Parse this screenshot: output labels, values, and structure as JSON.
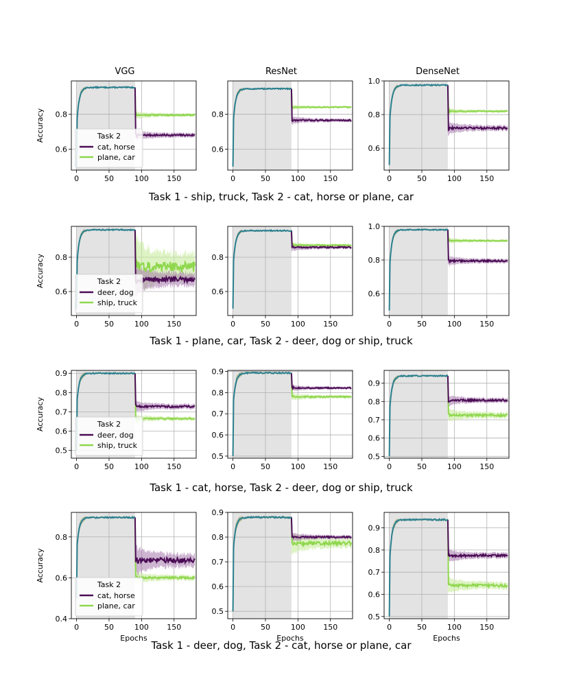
{
  "colors": {
    "task1": "#2a7f8e",
    "task1_band": "#7a8a3a",
    "task2_a": "#4b0c55",
    "task2_a_band": "#9b6aa3",
    "task2_b": "#8fd74e",
    "task2_b_band": "#c8eb9c",
    "shade": "#e3e3e3",
    "grid": "#b0b0b0"
  },
  "col_titles": [
    "VGG",
    "ResNet",
    "DenseNet"
  ],
  "row_captions": [
    "Task 1 - ship, truck, Task 2 - cat, horse or plane, car",
    "Task 1 - plane, car, Task 2 - deer, dog or ship, truck",
    "Task 1 - cat, horse, Task 2 - deer, dog or ship, truck",
    "Task 1 - deer, dog, Task 2 - cat, horse or plane, car"
  ],
  "ylabel": "Accuracy",
  "xlabel": "Epochs",
  "chart_data": [
    {
      "type": "line",
      "row": 0,
      "col": 0,
      "xlim": [
        -8,
        184
      ],
      "xticks": [
        0,
        50,
        100,
        150
      ],
      "ylim": [
        0.48,
        0.99
      ],
      "yticks": [
        0.6,
        0.8
      ],
      "shade_x": [
        0,
        90
      ],
      "task1_peak": 0.953,
      "task2_a_final": 0.68,
      "task2_a_band": 0.02,
      "task2_b_final": 0.795,
      "task2_b_band": 0.015,
      "legend": {
        "title": "Task 2",
        "entries": [
          "cat, horse",
          "plane, car"
        ]
      }
    },
    {
      "type": "line",
      "row": 0,
      "col": 1,
      "xlim": [
        -8,
        184
      ],
      "xticks": [
        0,
        50,
        100,
        150
      ],
      "ylim": [
        0.48,
        0.99
      ],
      "yticks": [
        0.6,
        0.8
      ],
      "shade_x": [
        0,
        90
      ],
      "task1_peak": 0.945,
      "task2_a_final": 0.765,
      "task2_a_band": 0.015,
      "task2_b_final": 0.84,
      "task2_b_band": 0.01
    },
    {
      "type": "line",
      "row": 0,
      "col": 2,
      "xlim": [
        -8,
        184
      ],
      "xticks": [
        0,
        50,
        100,
        150
      ],
      "ylim": [
        0.47,
        1.0
      ],
      "yticks": [
        0.6,
        0.8,
        1.0
      ],
      "shade_x": [
        0,
        90
      ],
      "task1_peak": 0.975,
      "task2_a_final": 0.72,
      "task2_a_band": 0.025,
      "task2_b_final": 0.82,
      "task2_b_band": 0.012
    },
    {
      "type": "line",
      "row": 1,
      "col": 0,
      "xlim": [
        -8,
        184
      ],
      "xticks": [
        0,
        50,
        100,
        150
      ],
      "ylim": [
        0.46,
        0.98
      ],
      "yticks": [
        0.6,
        0.8
      ],
      "shade_x": [
        0,
        90
      ],
      "task1_peak": 0.96,
      "task2_a_final": 0.67,
      "task2_a_band": 0.06,
      "task2_b_final": 0.745,
      "task2_b_band": 0.12,
      "legend": {
        "title": "Task 2",
        "entries": [
          "deer, dog",
          "ship, truck"
        ]
      }
    },
    {
      "type": "line",
      "row": 1,
      "col": 1,
      "xlim": [
        -8,
        184
      ],
      "xticks": [
        0,
        50,
        100,
        150
      ],
      "ylim": [
        0.46,
        0.98
      ],
      "yticks": [
        0.6,
        0.8
      ],
      "shade_x": [
        0,
        90
      ],
      "task1_peak": 0.955,
      "task2_a_final": 0.858,
      "task2_a_band": 0.015,
      "task2_b_final": 0.87,
      "task2_b_band": 0.012
    },
    {
      "type": "line",
      "row": 1,
      "col": 2,
      "xlim": [
        -8,
        184
      ],
      "xticks": [
        0,
        50,
        100,
        150
      ],
      "ylim": [
        0.47,
        1.0
      ],
      "yticks": [
        0.6,
        0.8,
        1.0
      ],
      "shade_x": [
        0,
        90
      ],
      "task1_peak": 0.98,
      "task2_a_final": 0.795,
      "task2_a_band": 0.02,
      "task2_b_final": 0.915,
      "task2_b_band": 0.012
    },
    {
      "type": "line",
      "row": 2,
      "col": 0,
      "xlim": [
        -8,
        184
      ],
      "xticks": [
        0,
        50,
        100,
        150
      ],
      "ylim": [
        0.46,
        0.915
      ],
      "yticks": [
        0.5,
        0.6,
        0.7,
        0.8,
        0.9
      ],
      "shade_x": [
        0,
        90
      ],
      "task1_peak": 0.9,
      "task2_a_final": 0.728,
      "task2_a_band": 0.02,
      "task2_b_final": 0.665,
      "task2_b_band": 0.015,
      "legend": {
        "title": "Task 2",
        "entries": [
          "deer, dog",
          "ship, truck"
        ]
      }
    },
    {
      "type": "line",
      "row": 2,
      "col": 1,
      "xlim": [
        -8,
        184
      ],
      "xticks": [
        0,
        50,
        100,
        150
      ],
      "ylim": [
        0.49,
        0.905
      ],
      "yticks": [
        0.5,
        0.6,
        0.7,
        0.8,
        0.9
      ],
      "shade_x": [
        0,
        90
      ],
      "task1_peak": 0.893,
      "task2_a_final": 0.822,
      "task2_a_band": 0.01,
      "task2_b_final": 0.78,
      "task2_b_band": 0.012
    },
    {
      "type": "line",
      "row": 2,
      "col": 2,
      "xlim": [
        -8,
        184
      ],
      "xticks": [
        0,
        50,
        100,
        150
      ],
      "ylim": [
        0.49,
        0.97
      ],
      "yticks": [
        0.5,
        0.6,
        0.7,
        0.8,
        0.9
      ],
      "shade_x": [
        0,
        90
      ],
      "task1_peak": 0.94,
      "task2_a_final": 0.807,
      "task2_a_band": 0.02,
      "task2_b_final": 0.725,
      "task2_b_band": 0.025
    },
    {
      "type": "line",
      "row": 3,
      "col": 0,
      "xlim": [
        -8,
        184
      ],
      "xticks": [
        0,
        50,
        100,
        150
      ],
      "ylim": [
        0.4,
        0.92
      ],
      "yticks": [
        0.4,
        0.6,
        0.8
      ],
      "shade_x": [
        0,
        90
      ],
      "task1_peak": 0.895,
      "task2_a_final": 0.685,
      "task2_a_band": 0.05,
      "task2_b_final": 0.6,
      "task2_b_band": 0.02,
      "legend": {
        "title": "Task 2",
        "entries": [
          "cat, horse",
          "plane, car"
        ]
      }
    },
    {
      "type": "line",
      "row": 3,
      "col": 1,
      "xlim": [
        -8,
        184
      ],
      "xticks": [
        0,
        50,
        100,
        150
      ],
      "ylim": [
        0.47,
        0.9
      ],
      "yticks": [
        0.5,
        0.6,
        0.7,
        0.8,
        0.9
      ],
      "shade_x": [
        0,
        90
      ],
      "task1_peak": 0.88,
      "task2_a_final": 0.8,
      "task2_a_band": 0.012,
      "task2_b_final": 0.775,
      "task2_b_band": 0.03
    },
    {
      "type": "line",
      "row": 3,
      "col": 2,
      "xlim": [
        -8,
        184
      ],
      "xticks": [
        0,
        50,
        100,
        150
      ],
      "ylim": [
        0.49,
        0.97
      ],
      "yticks": [
        0.5,
        0.6,
        0.7,
        0.8,
        0.9
      ],
      "shade_x": [
        0,
        90
      ],
      "task1_peak": 0.937,
      "task2_a_final": 0.775,
      "task2_a_band": 0.02,
      "task2_b_final": 0.64,
      "task2_b_band": 0.025
    }
  ]
}
